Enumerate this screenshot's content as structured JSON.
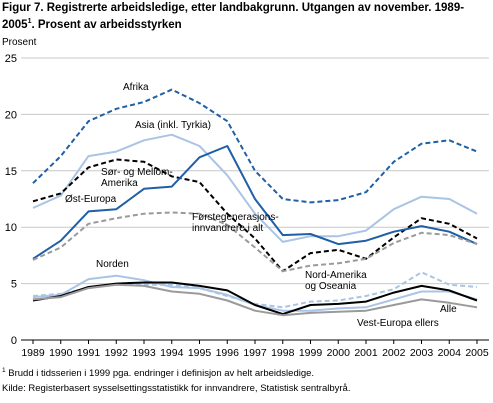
{
  "title_line1": "Figur 7. Registrerte arbeidsledige, etter landbakgrunn. Utgangen av november. 1989-",
  "title_line2_pre": "2005",
  "title_sup": "1",
  "title_line2_post": ". Prosent av arbeidsstyrken",
  "footnote_sup": "1",
  "footnote1": " Brudd i tidsserien i 1999 pga. endringer i definisjon av helt arbeidsledige.",
  "source": "Kilde: Registerbasert sysselsettingsstatistikk for innvandrere, Statistisk sentralbyrå.",
  "chart_data": {
    "type": "line",
    "ylabel": "Prosent",
    "xlabel": "",
    "ylim": [
      0,
      25
    ],
    "yticks": [
      0,
      5,
      10,
      15,
      20,
      25
    ],
    "grid": true,
    "x": [
      1989,
      1990,
      1991,
      1992,
      1993,
      1994,
      1995,
      1996,
      1997,
      1998,
      1999,
      2000,
      2001,
      2002,
      2003,
      2004,
      2005
    ],
    "series": [
      {
        "name": "Afrika",
        "color": "#1f5fa6",
        "dash": "dash",
        "width": 2,
        "values": [
          13.9,
          16.3,
          19.4,
          20.5,
          21.1,
          22.2,
          21.0,
          19.4,
          15.0,
          12.5,
          12.2,
          12.4,
          13.1,
          15.8,
          17.4,
          17.7,
          16.7
        ]
      },
      {
        "name": "Asia (inkl. Tyrkia)",
        "color": "#a9c4e4",
        "dash": "solid",
        "width": 2,
        "values": [
          11.7,
          12.8,
          16.3,
          16.7,
          17.7,
          18.2,
          17.2,
          14.6,
          11.2,
          8.7,
          9.2,
          9.2,
          9.7,
          11.6,
          12.7,
          12.5,
          11.2
        ]
      },
      {
        "name": "Sør- og Mellom-Amerika",
        "color": "#000000",
        "dash": "dash",
        "width": 2,
        "values": [
          12.3,
          13.0,
          15.3,
          16.0,
          15.8,
          14.5,
          14.0,
          11.2,
          9.0,
          6.1,
          7.7,
          8.0,
          7.2,
          9.1,
          10.8,
          10.3,
          9.0
        ]
      },
      {
        "name": "Øst-Europa",
        "color": "#1f5fa6",
        "dash": "solid",
        "width": 2,
        "values": [
          7.2,
          8.8,
          11.4,
          11.6,
          13.4,
          13.6,
          16.2,
          17.2,
          12.5,
          9.3,
          9.4,
          8.5,
          8.8,
          9.6,
          10.1,
          9.6,
          8.5
        ]
      },
      {
        "name": "Førstegenerasjons-innvandrere i alt",
        "color": "#9a9a9a",
        "dash": "dash",
        "width": 2,
        "values": [
          7.1,
          8.2,
          10.3,
          10.8,
          11.2,
          11.3,
          11.2,
          10.2,
          8.2,
          6.1,
          6.6,
          6.8,
          7.2,
          8.6,
          9.5,
          9.3,
          8.5
        ]
      },
      {
        "name": "Norden",
        "color": "#a9c4e4",
        "dash": "solid",
        "width": 2,
        "values": [
          3.8,
          4.0,
          5.4,
          5.7,
          5.3,
          4.7,
          4.6,
          4.0,
          3.1,
          2.6,
          2.6,
          2.8,
          2.9,
          3.6,
          4.3,
          4.3,
          3.6
        ]
      },
      {
        "name": "Nord-Amerika og Oseania",
        "color": "#a9c4e4",
        "dash": "dash",
        "width": 2,
        "values": [
          3.9,
          4.1,
          4.6,
          5.0,
          4.9,
          4.9,
          4.6,
          3.9,
          3.2,
          2.9,
          3.4,
          3.5,
          3.9,
          4.5,
          6.0,
          4.9,
          4.7
        ]
      },
      {
        "name": "Alle",
        "color": "#000000",
        "dash": "solid",
        "width": 2,
        "values": [
          3.5,
          3.9,
          4.7,
          5.0,
          5.1,
          5.1,
          4.8,
          4.4,
          3.1,
          2.3,
          3.1,
          3.2,
          3.4,
          4.2,
          4.8,
          4.4,
          3.5
        ]
      },
      {
        "name": "Vest-Europa ellers",
        "color": "#9a9a9a",
        "dash": "solid",
        "width": 2,
        "values": [
          3.6,
          3.8,
          4.6,
          4.9,
          4.8,
          4.3,
          4.1,
          3.5,
          2.6,
          2.2,
          2.4,
          2.5,
          2.6,
          3.1,
          3.6,
          3.3,
          2.9
        ]
      }
    ],
    "annotations": [
      {
        "lines": [
          "Afrika"
        ]
      },
      {
        "lines": [
          "Asia (inkl. Tyrkia)"
        ]
      },
      {
        "lines": [
          "Sør- og Mellom-",
          "Amerika"
        ]
      },
      {
        "lines": [
          "Øst-Europa"
        ]
      },
      {
        "lines": [
          "Førstegenerasjons-",
          "innvandrere i alt"
        ]
      },
      {
        "lines": [
          "Norden"
        ]
      },
      {
        "lines": [
          "Nord-Amerika",
          "og Oseania"
        ]
      },
      {
        "lines": [
          "Alle"
        ]
      },
      {
        "lines": [
          "Vest-Europa ellers"
        ]
      }
    ]
  }
}
